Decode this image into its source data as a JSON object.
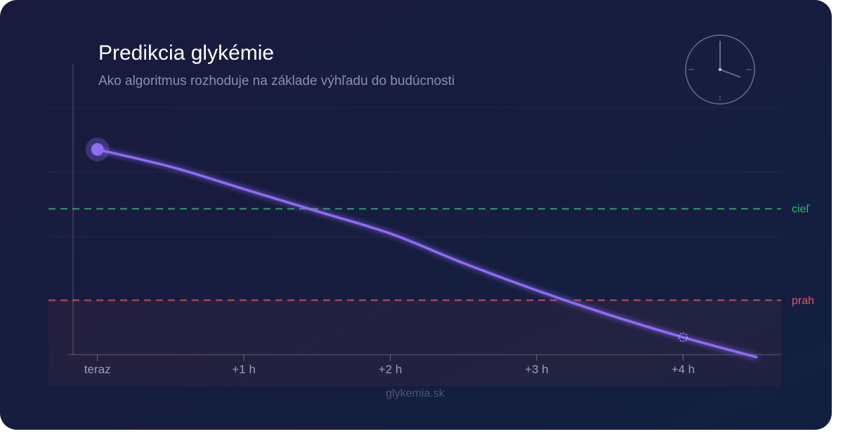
{
  "chart_data": {
    "type": "line",
    "title": "Predikcia glykémie",
    "subtitle": "Ako algoritmus rozhoduje na základe výhľadu do budúcnosti",
    "x": [
      0,
      0.5,
      1,
      1.5,
      2,
      2.5,
      3,
      3.5,
      4,
      4.5
    ],
    "series": [
      {
        "color": "#8f6cf5",
        "values": [
          83,
          76,
          67,
          58,
          49,
          37,
          26,
          16,
          7,
          -1
        ]
      }
    ],
    "xlim": [
      -0.2,
      4.67
    ],
    "xticks": [
      {
        "value": 0,
        "label": "teraz"
      },
      {
        "value": 1,
        "label": "+1 h"
      },
      {
        "value": 2,
        "label": "+2 h"
      },
      {
        "value": 3,
        "label": "+3 h"
      },
      {
        "value": 4,
        "label": "+4 h"
      }
    ],
    "ylim": [
      0,
      100
    ],
    "reference_lines": [
      {
        "label": "cieľ",
        "value": 59,
        "color": "#2fb96b"
      },
      {
        "label": "prah",
        "value": 22,
        "color": "#e0555d"
      }
    ],
    "footer": "glykemia.sk"
  }
}
